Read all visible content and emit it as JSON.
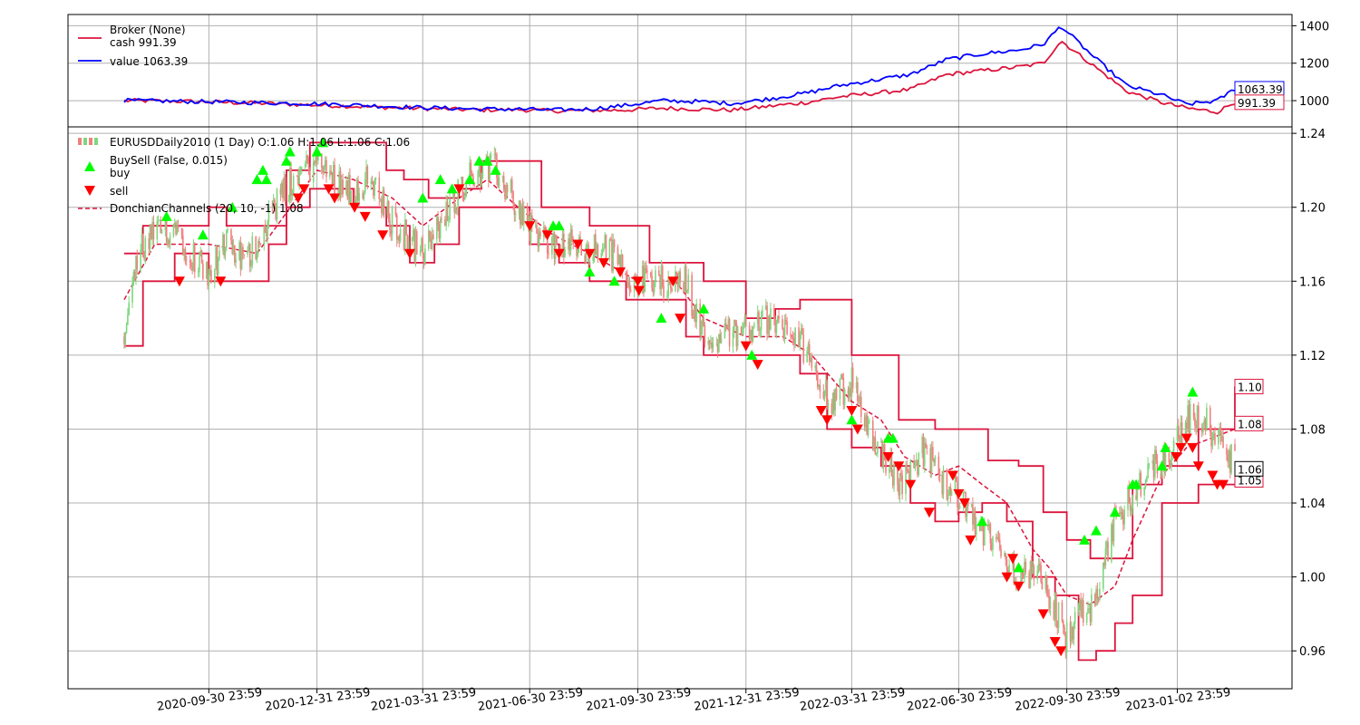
{
  "chart_data": [
    {
      "type": "line",
      "panel": "broker",
      "legend_title": "Broker (None)",
      "legend": [
        {
          "label": "cash 991.39",
          "color": "#dc143c"
        },
        {
          "label": "value 1063.39",
          "color": "#0000ff"
        }
      ],
      "yticks": [
        "1000",
        "1200",
        "1400"
      ],
      "ylim": [
        860,
        1460
      ],
      "end_labels": {
        "cash": "991.39",
        "value": "1063.39"
      },
      "x": [
        "2020-07-20",
        "2020-08-20",
        "2020-09-20",
        "2020-10-20",
        "2020-11-20",
        "2020-12-20",
        "2021-01-20",
        "2021-02-20",
        "2021-03-20",
        "2021-04-20",
        "2021-05-20",
        "2021-06-20",
        "2021-07-20",
        "2021-08-20",
        "2021-09-20",
        "2021-10-20",
        "2021-11-20",
        "2021-12-20",
        "2022-01-20",
        "2022-02-20",
        "2022-03-20",
        "2022-04-20",
        "2022-05-20",
        "2022-06-20",
        "2022-07-20",
        "2022-08-20",
        "2022-09-10",
        "2022-09-25",
        "2022-10-20",
        "2022-11-20",
        "2022-12-20",
        "2023-01-10",
        "2023-02-05",
        "2023-02-20"
      ],
      "series": [
        {
          "name": "cash",
          "color": "#dc143c",
          "values": [
            1000,
            998,
            995,
            990,
            985,
            978,
            972,
            965,
            960,
            955,
            950,
            952,
            945,
            948,
            950,
            960,
            955,
            950,
            970,
            990,
            1020,
            1040,
            1060,
            1140,
            1160,
            1180,
            1200,
            1320,
            1200,
            1050,
            990,
            960,
            940,
            991.39
          ]
        },
        {
          "name": "value",
          "color": "#0000ff",
          "values": [
            1000,
            998,
            995,
            992,
            988,
            985,
            980,
            972,
            965,
            960,
            955,
            955,
            950,
            955,
            975,
            1000,
            995,
            985,
            1010,
            1040,
            1080,
            1110,
            1140,
            1220,
            1250,
            1270,
            1300,
            1400,
            1250,
            1080,
            1030,
            980,
            1000,
            1063.39
          ]
        }
      ]
    },
    {
      "type": "candlestick",
      "panel": "price",
      "legend": [
        {
          "label": "EURUSDDaily2010 (1 Day) O:1.06 H:1.06 L:1.06 C:1.06",
          "kind": "candle"
        },
        {
          "label": "BuySell (False, 0.015)",
          "kind": "title"
        },
        {
          "label": "buy",
          "kind": "buy",
          "color": "#00ff00"
        },
        {
          "label": "sell",
          "kind": "sell",
          "color": "#ff0000"
        },
        {
          "label": "DonchianChannels (20, 10, -1) 1.08",
          "kind": "dashed",
          "color": "#dc143c"
        }
      ],
      "xticks": [
        "2020-09-30 23:59",
        "2020-12-31 23:59",
        "2021-03-31 23:59",
        "2021-06-30 23:59",
        "2021-09-30 23:59",
        "2021-12-31 23:59",
        "2022-03-31 23:59",
        "2022-06-30 23:59",
        "2022-09-30 23:59",
        "2023-01-02 23:59"
      ],
      "yticks": [
        "0.96",
        "1.00",
        "1.04",
        "1.08",
        "1.12",
        "1.16",
        "1.20",
        "1.24"
      ],
      "ylim": [
        0.9395,
        1.2435
      ],
      "end_labels": {
        "upper": "1.10",
        "mid": "1.08",
        "close": "1.06",
        "lower": "1.05"
      },
      "close_path": {
        "x": [
          "2020-07-20",
          "2020-08-01",
          "2020-08-15",
          "2020-09-01",
          "2020-09-15",
          "2020-09-30",
          "2020-10-15",
          "2020-11-01",
          "2020-11-20",
          "2020-12-10",
          "2020-12-31",
          "2021-01-15",
          "2021-02-01",
          "2021-02-15",
          "2021-03-01",
          "2021-03-31",
          "2021-04-15",
          "2021-05-01",
          "2021-05-15",
          "2021-06-01",
          "2021-06-30",
          "2021-07-15",
          "2021-08-01",
          "2021-08-20",
          "2021-09-01",
          "2021-09-20",
          "2021-09-30",
          "2021-10-20",
          "2021-11-10",
          "2021-11-25",
          "2021-12-10",
          "2021-12-31",
          "2022-01-15",
          "2022-02-10",
          "2022-02-25",
          "2022-03-10",
          "2022-03-31",
          "2022-04-15",
          "2022-05-01",
          "2022-05-12",
          "2022-06-01",
          "2022-06-15",
          "2022-06-30",
          "2022-07-15",
          "2022-08-01",
          "2022-08-20",
          "2022-09-05",
          "2022-09-20",
          "2022-09-28",
          "2022-10-10",
          "2022-10-25",
          "2022-11-10",
          "2022-11-25",
          "2022-12-10",
          "2022-12-25",
          "2023-01-10",
          "2023-01-25",
          "2023-02-10",
          "2023-02-20"
        ],
        "y": [
          1.13,
          1.175,
          1.185,
          1.19,
          1.175,
          1.165,
          1.18,
          1.17,
          1.195,
          1.215,
          1.225,
          1.215,
          1.21,
          1.215,
          1.195,
          1.175,
          1.19,
          1.21,
          1.22,
          1.22,
          1.19,
          1.18,
          1.18,
          1.175,
          1.18,
          1.165,
          1.16,
          1.16,
          1.16,
          1.13,
          1.13,
          1.135,
          1.14,
          1.13,
          1.12,
          1.095,
          1.105,
          1.08,
          1.06,
          1.05,
          1.07,
          1.05,
          1.045,
          1.025,
          1.02,
          1.0,
          1.0,
          0.985,
          0.965,
          0.98,
          0.985,
          1.03,
          1.045,
          1.06,
          1.065,
          1.085,
          1.085,
          1.07,
          1.06
        ]
      },
      "upper": {
        "x": [
          "2020-07-20",
          "2020-08-05",
          "2020-08-20",
          "2020-09-30",
          "2020-10-15",
          "2020-11-20",
          "2020-12-05",
          "2020-12-25",
          "2021-01-31",
          "2021-02-28",
          "2021-03-15",
          "2021-04-05",
          "2021-05-01",
          "2021-05-20",
          "2021-06-15",
          "2021-07-10",
          "2021-08-20",
          "2021-09-10",
          "2021-10-10",
          "2021-11-10",
          "2021-11-25",
          "2021-12-31",
          "2022-01-25",
          "2022-02-15",
          "2022-03-31",
          "2022-04-25",
          "2022-05-10",
          "2022-06-10",
          "2022-06-30",
          "2022-07-25",
          "2022-08-20",
          "2022-09-10",
          "2022-09-30",
          "2022-10-20",
          "2022-11-10",
          "2022-11-25",
          "2022-12-20",
          "2023-01-20",
          "2023-02-20"
        ],
        "y": [
          1.175,
          1.19,
          1.19,
          1.2,
          1.19,
          1.19,
          1.22,
          1.235,
          1.235,
          1.22,
          1.215,
          1.205,
          1.21,
          1.225,
          1.225,
          1.2,
          1.19,
          1.19,
          1.17,
          1.17,
          1.16,
          1.14,
          1.145,
          1.15,
          1.12,
          1.12,
          1.085,
          1.08,
          1.08,
          1.063,
          1.06,
          1.035,
          1.02,
          1.01,
          1.01,
          1.05,
          1.06,
          1.08,
          1.103
        ]
      },
      "lower": {
        "x": [
          "2020-07-20",
          "2020-08-05",
          "2020-09-01",
          "2020-09-30",
          "2020-10-20",
          "2020-11-20",
          "2020-12-05",
          "2020-12-25",
          "2021-01-31",
          "2021-02-28",
          "2021-03-20",
          "2021-04-10",
          "2021-05-01",
          "2021-06-05",
          "2021-06-30",
          "2021-07-25",
          "2021-08-20",
          "2021-09-20",
          "2021-10-15",
          "2021-11-10",
          "2021-11-25",
          "2021-12-31",
          "2022-01-25",
          "2022-02-15",
          "2022-03-10",
          "2022-03-31",
          "2022-04-25",
          "2022-05-20",
          "2022-06-10",
          "2022-06-30",
          "2022-07-20",
          "2022-08-10",
          "2022-09-01",
          "2022-09-20",
          "2022-10-10",
          "2022-10-25",
          "2022-11-10",
          "2022-11-25",
          "2022-12-20",
          "2023-01-20",
          "2023-02-20"
        ],
        "y": [
          1.125,
          1.16,
          1.175,
          1.16,
          1.16,
          1.18,
          1.2,
          1.21,
          1.2,
          1.19,
          1.17,
          1.18,
          1.2,
          1.2,
          1.18,
          1.17,
          1.16,
          1.15,
          1.15,
          1.13,
          1.12,
          1.12,
          1.12,
          1.11,
          1.08,
          1.07,
          1.06,
          1.04,
          1.03,
          1.035,
          1.04,
          1.03,
          1.0,
          0.99,
          0.955,
          0.96,
          0.975,
          0.99,
          1.04,
          1.05,
          1.05
        ]
      },
      "mid": {
        "x": [
          "2020-07-20",
          "2020-08-15",
          "2020-09-30",
          "2020-11-10",
          "2020-12-31",
          "2021-01-31",
          "2021-03-05",
          "2021-03-31",
          "2021-05-01",
          "2021-05-25",
          "2021-06-20",
          "2021-07-20",
          "2021-08-20",
          "2021-09-30",
          "2021-11-01",
          "2021-11-25",
          "2021-12-31",
          "2022-02-01",
          "2022-02-25",
          "2022-03-31",
          "2022-04-25",
          "2022-05-15",
          "2022-06-10",
          "2022-06-30",
          "2022-07-20",
          "2022-08-10",
          "2022-09-01",
          "2022-09-15",
          "2022-09-30",
          "2022-10-20",
          "2022-11-10",
          "2022-11-25",
          "2022-12-20",
          "2023-01-10",
          "2023-02-20"
        ],
        "y": [
          1.15,
          1.18,
          1.18,
          1.175,
          1.22,
          1.215,
          1.205,
          1.19,
          1.205,
          1.215,
          1.2,
          1.185,
          1.175,
          1.16,
          1.16,
          1.14,
          1.13,
          1.13,
          1.12,
          1.095,
          1.085,
          1.065,
          1.055,
          1.06,
          1.05,
          1.04,
          1.015,
          1.005,
          0.99,
          0.985,
          0.995,
          1.02,
          1.055,
          1.07,
          1.08
        ]
      },
      "buy_signals": {
        "x": [
          "2020-08-25",
          "2020-09-25",
          "2020-10-20",
          "2020-11-10",
          "2020-11-15",
          "2020-11-18",
          "2020-12-05",
          "2020-12-08",
          "2020-12-31",
          "2021-01-05",
          "2021-03-31",
          "2021-04-15",
          "2021-04-25",
          "2021-05-10",
          "2021-05-18",
          "2021-05-25",
          "2021-06-01",
          "2021-07-20",
          "2021-07-25",
          "2021-08-20",
          "2021-09-10",
          "2021-10-20",
          "2021-11-25",
          "2022-01-05",
          "2022-03-31",
          "2022-05-01",
          "2022-05-05",
          "2022-07-20",
          "2022-08-20",
          "2022-10-15",
          "2022-10-25",
          "2022-11-10",
          "2022-11-25",
          "2022-11-28",
          "2022-12-20",
          "2022-12-23",
          "2023-01-15"
        ],
        "y": [
          1.195,
          1.185,
          1.2,
          1.215,
          1.22,
          1.215,
          1.225,
          1.23,
          1.23,
          1.235,
          1.205,
          1.215,
          1.21,
          1.215,
          1.225,
          1.225,
          1.22,
          1.19,
          1.19,
          1.165,
          1.16,
          1.14,
          1.145,
          1.12,
          1.085,
          1.075,
          1.075,
          1.03,
          1.005,
          1.02,
          1.025,
          1.035,
          1.05,
          1.05,
          1.06,
          1.07,
          1.1
        ]
      },
      "sell_signals": {
        "x": [
          "2020-09-05",
          "2020-10-10",
          "2020-12-15",
          "2020-12-20",
          "2021-01-10",
          "2021-01-15",
          "2021-02-01",
          "2021-02-10",
          "2021-02-25",
          "2021-03-20",
          "2021-05-01",
          "2021-06-30",
          "2021-07-15",
          "2021-07-25",
          "2021-08-10",
          "2021-08-20",
          "2021-09-01",
          "2021-09-15",
          "2021-09-30",
          "2021-10-01",
          "2021-10-30",
          "2021-11-05",
          "2021-12-31",
          "2022-01-10",
          "2022-03-05",
          "2022-03-10",
          "2022-03-31",
          "2022-04-05",
          "2022-05-01",
          "2022-05-10",
          "2022-05-20",
          "2022-06-05",
          "2022-06-25",
          "2022-06-30",
          "2022-07-05",
          "2022-07-10",
          "2022-08-10",
          "2022-08-15",
          "2022-08-20",
          "2022-09-10",
          "2022-09-20",
          "2022-09-25",
          "2023-01-01",
          "2023-01-05",
          "2023-01-10",
          "2023-01-15",
          "2023-01-20",
          "2023-02-01",
          "2023-02-05",
          "2023-02-10"
        ],
        "y": [
          1.16,
          1.16,
          1.205,
          1.21,
          1.21,
          1.205,
          1.2,
          1.195,
          1.185,
          1.175,
          1.21,
          1.19,
          1.185,
          1.175,
          1.18,
          1.175,
          1.17,
          1.165,
          1.16,
          1.155,
          1.16,
          1.14,
          1.125,
          1.115,
          1.09,
          1.085,
          1.09,
          1.08,
          1.065,
          1.06,
          1.05,
          1.035,
          1.055,
          1.045,
          1.04,
          1.02,
          1.0,
          1.01,
          0.995,
          0.98,
          0.965,
          0.96,
          1.065,
          1.07,
          1.075,
          1.07,
          1.06,
          1.055,
          1.05,
          1.05
        ]
      }
    }
  ]
}
